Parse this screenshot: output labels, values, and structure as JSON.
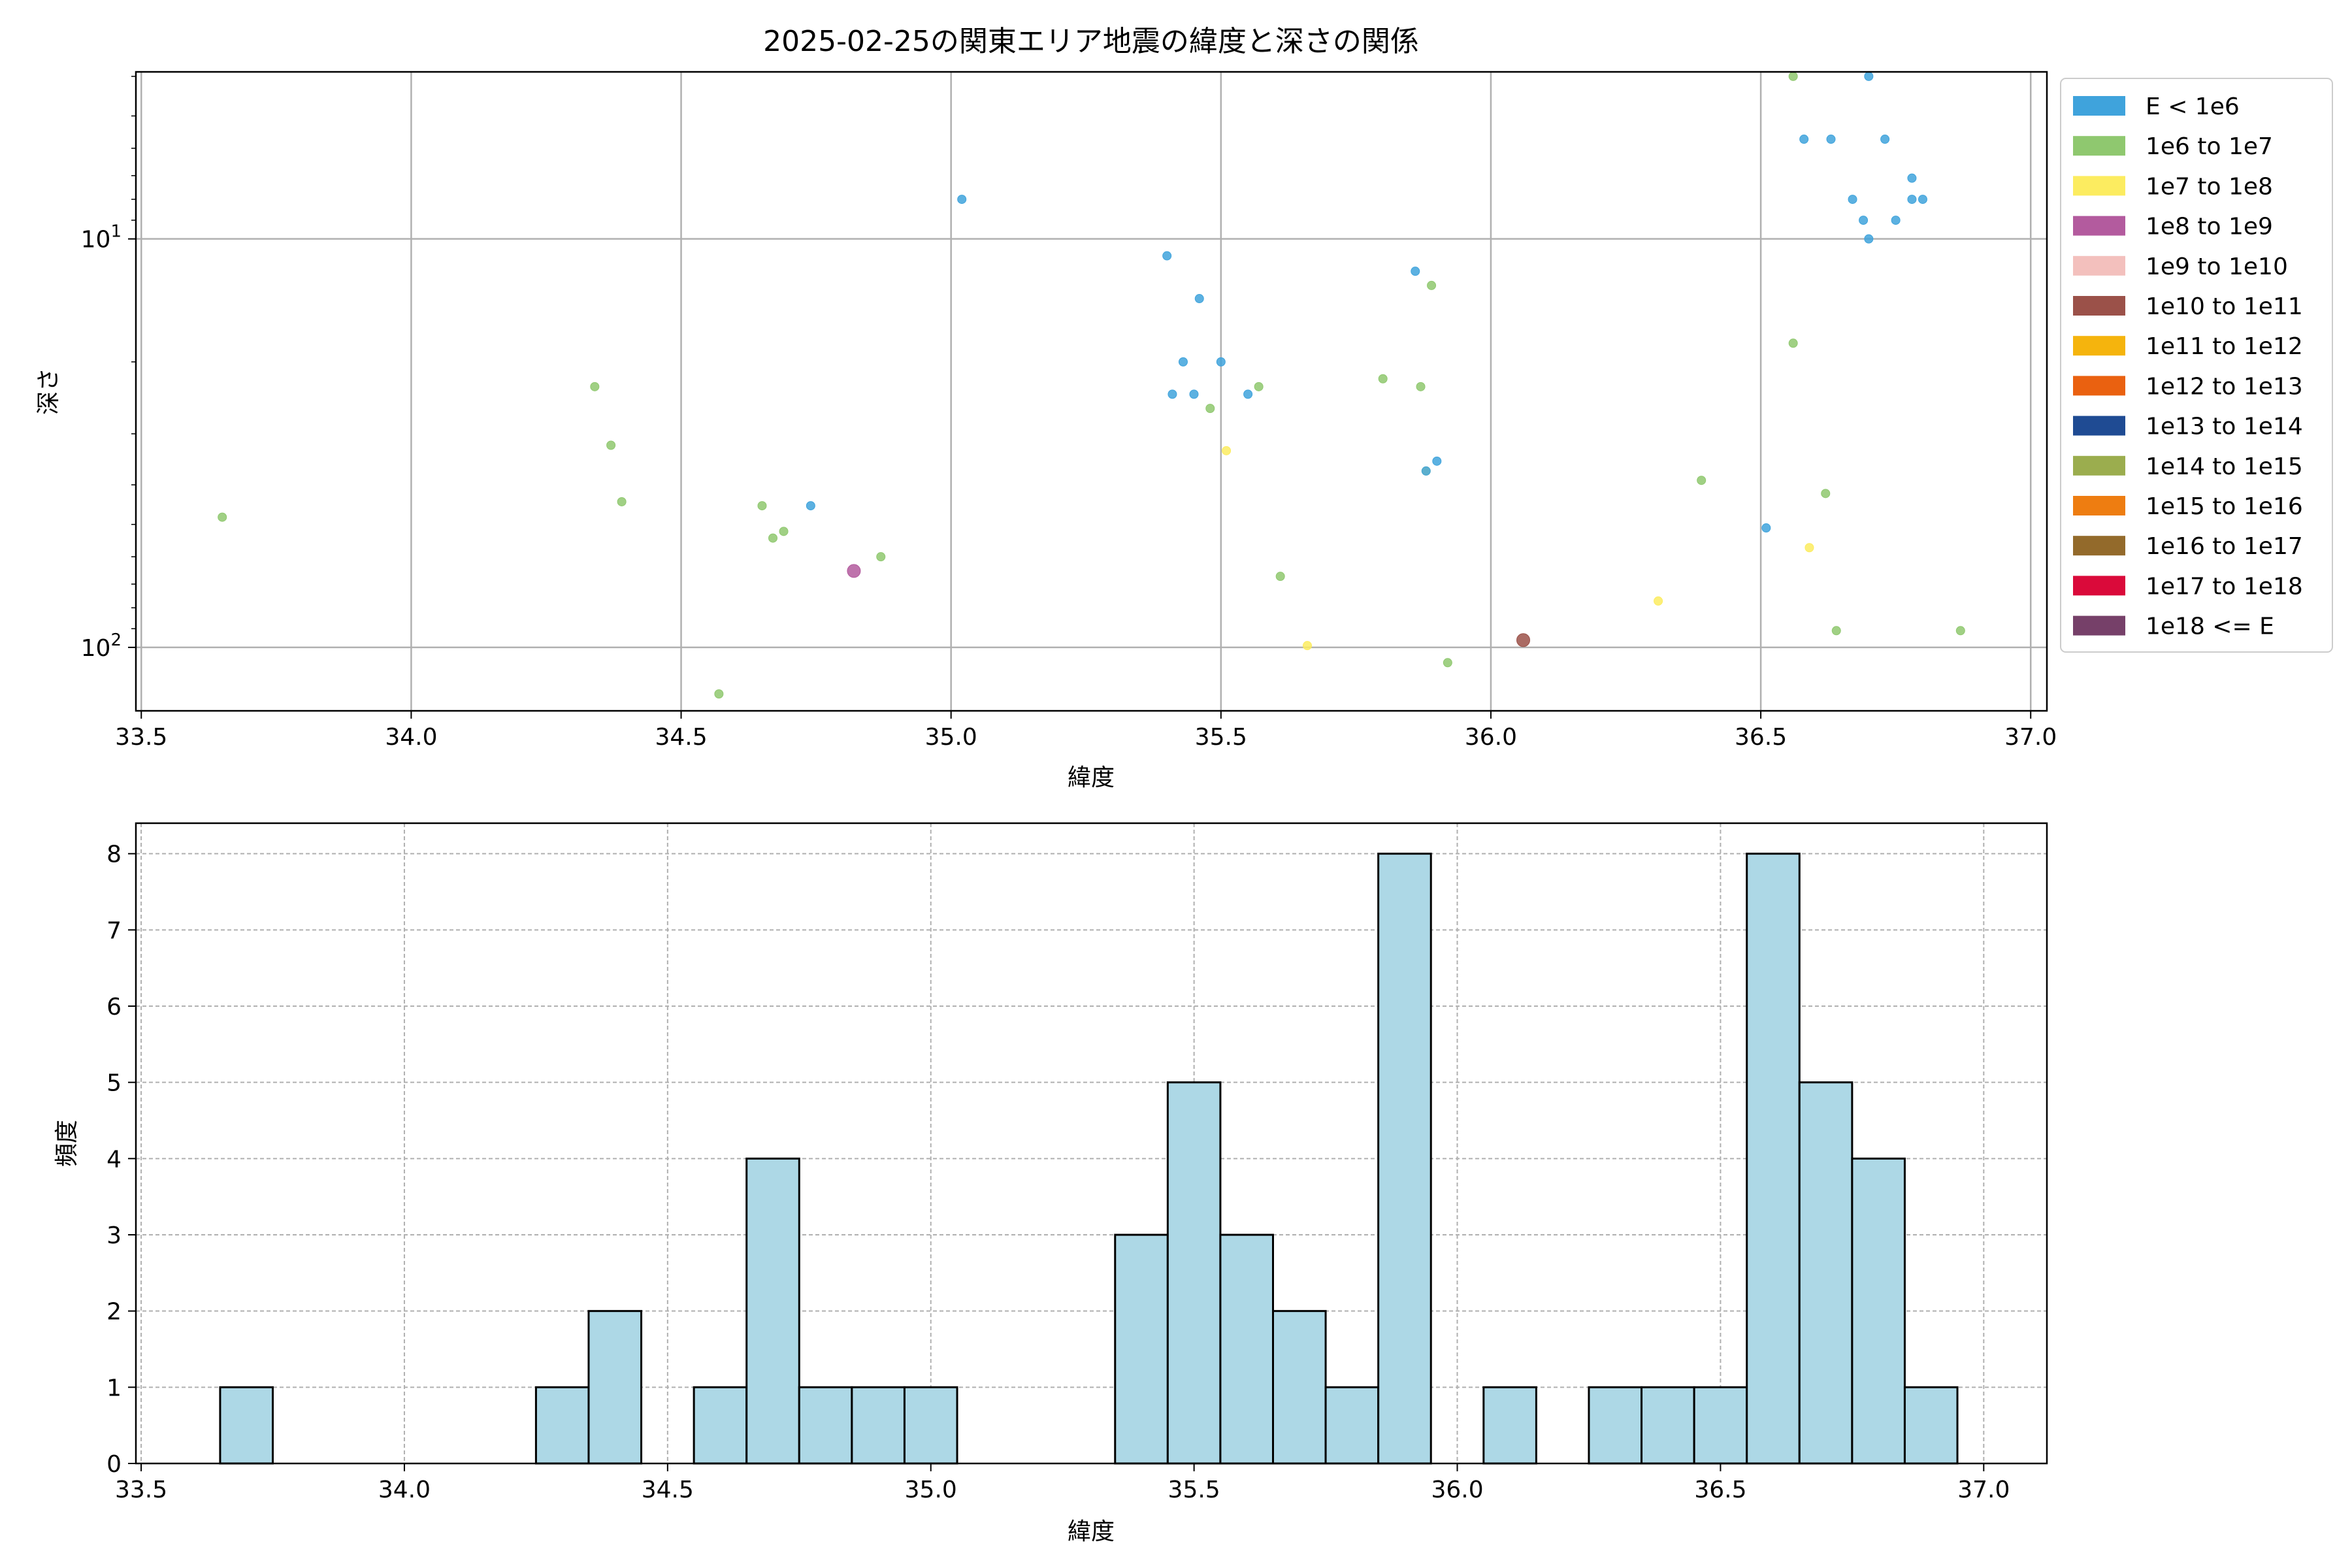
{
  "chart_data": [
    {
      "type": "scatter",
      "title": "2025-02-25の関東エリア地震の緯度と深さの関係",
      "xlabel": "緯度",
      "ylabel": "深さ",
      "xlim": [
        33.49,
        37.03
      ],
      "ylim": [
        143,
        3.9
      ],
      "yscale": "log",
      "y_inverted": true,
      "xticks": [
        33.5,
        34.0,
        34.5,
        35.0,
        35.5,
        36.0,
        36.5,
        37.0
      ],
      "xtick_labels": [
        "33.5",
        "34.0",
        "34.5",
        "35.0",
        "35.5",
        "36.0",
        "36.5",
        "37.0"
      ],
      "yticks": [
        10,
        100
      ],
      "ytick_labels": [
        "10",
        "100"
      ],
      "ytick_exponents": [
        "1",
        "2"
      ],
      "grid": true,
      "legend_placement": "outside right",
      "legend": [
        {
          "label": "E < 1e6",
          "color": "#3fa3dc"
        },
        {
          "label": "1e6 to 1e7",
          "color": "#8fc86f"
        },
        {
          "label": "1e7 to 1e8",
          "color": "#fcec60"
        },
        {
          "label": "1e8 to 1e9",
          "color": "#b35b9e"
        },
        {
          "label": "1e9 to 1e10",
          "color": "#f3c0bd"
        },
        {
          "label": "1e10 to 1e11",
          "color": "#9b5149"
        },
        {
          "label": "1e11 to 1e12",
          "color": "#f5b40d"
        },
        {
          "label": "1e12 to 1e13",
          "color": "#ea6110"
        },
        {
          "label": "1e13 to 1e14",
          "color": "#1f4b93"
        },
        {
          "label": "1e14 to 1e15",
          "color": "#9bad4e"
        },
        {
          "label": "1e15 to 1e16",
          "color": "#ee7d11"
        },
        {
          "label": "1e16 to 1e17",
          "color": "#936a2b"
        },
        {
          "label": "1e17 to 1e18",
          "color": "#da0a3a"
        },
        {
          "label": "1e18 <= E",
          "color": "#764069"
        }
      ],
      "points": [
        {
          "x": 33.65,
          "y": 48,
          "c": 1
        },
        {
          "x": 34.34,
          "y": 23,
          "c": 1
        },
        {
          "x": 34.37,
          "y": 32,
          "c": 1
        },
        {
          "x": 34.39,
          "y": 44,
          "c": 1
        },
        {
          "x": 34.57,
          "y": 130,
          "c": 1
        },
        {
          "x": 34.65,
          "y": 45,
          "c": 1
        },
        {
          "x": 34.67,
          "y": 54,
          "c": 1
        },
        {
          "x": 34.69,
          "y": 52,
          "c": 1
        },
        {
          "x": 34.74,
          "y": 45,
          "c": 0
        },
        {
          "x": 34.82,
          "y": 65,
          "c": 3,
          "big": true
        },
        {
          "x": 34.87,
          "y": 60,
          "c": 1
        },
        {
          "x": 35.02,
          "y": 8,
          "c": 0
        },
        {
          "x": 35.4,
          "y": 11,
          "c": 0
        },
        {
          "x": 35.41,
          "y": 24,
          "c": 0
        },
        {
          "x": 35.43,
          "y": 20,
          "c": 0
        },
        {
          "x": 35.45,
          "y": 24,
          "c": 0
        },
        {
          "x": 35.46,
          "y": 14,
          "c": 0
        },
        {
          "x": 35.48,
          "y": 26,
          "c": 1
        },
        {
          "x": 35.5,
          "y": 20,
          "c": 0
        },
        {
          "x": 35.51,
          "y": 33,
          "c": 2
        },
        {
          "x": 35.55,
          "y": 24,
          "c": 0
        },
        {
          "x": 35.57,
          "y": 23,
          "c": 1
        },
        {
          "x": 35.61,
          "y": 67,
          "c": 1
        },
        {
          "x": 35.66,
          "y": 99,
          "c": 2
        },
        {
          "x": 35.8,
          "y": 22,
          "c": 1
        },
        {
          "x": 35.86,
          "y": 12,
          "c": 0
        },
        {
          "x": 35.87,
          "y": 23,
          "c": 1
        },
        {
          "x": 35.88,
          "y": 37,
          "c": 2
        },
        {
          "x": 35.88,
          "y": 37,
          "c": 0
        },
        {
          "x": 35.89,
          "y": 13,
          "c": 1
        },
        {
          "x": 35.9,
          "y": 35,
          "c": 0
        },
        {
          "x": 35.92,
          "y": 109,
          "c": 1
        },
        {
          "x": 36.06,
          "y": 96,
          "c": 5,
          "big": true
        },
        {
          "x": 36.31,
          "y": 77,
          "c": 2
        },
        {
          "x": 36.39,
          "y": 39,
          "c": 1
        },
        {
          "x": 36.51,
          "y": 51,
          "c": 0
        },
        {
          "x": 36.56,
          "y": 4,
          "c": 1
        },
        {
          "x": 36.56,
          "y": 18,
          "c": 1
        },
        {
          "x": 36.58,
          "y": 5.7,
          "c": 0
        },
        {
          "x": 36.59,
          "y": 57,
          "c": 2
        },
        {
          "x": 36.62,
          "y": 42,
          "c": 1
        },
        {
          "x": 36.63,
          "y": 5.7,
          "c": 0
        },
        {
          "x": 36.64,
          "y": 91,
          "c": 1
        },
        {
          "x": 36.67,
          "y": 8,
          "c": 0
        },
        {
          "x": 36.69,
          "y": 9,
          "c": 0
        },
        {
          "x": 36.7,
          "y": 10,
          "c": 0
        },
        {
          "x": 36.7,
          "y": 4,
          "c": 0
        },
        {
          "x": 36.73,
          "y": 5.7,
          "c": 0
        },
        {
          "x": 36.75,
          "y": 9,
          "c": 0
        },
        {
          "x": 36.78,
          "y": 7.1,
          "c": 0
        },
        {
          "x": 36.78,
          "y": 8,
          "c": 0
        },
        {
          "x": 36.8,
          "y": 8,
          "c": 0
        },
        {
          "x": 36.87,
          "y": 91,
          "c": 1
        }
      ]
    },
    {
      "type": "bar",
      "subtype": "histogram",
      "xlabel": "緯度",
      "ylabel": "頻度",
      "xlim": [
        33.49,
        37.12
      ],
      "ylim": [
        0,
        8.4
      ],
      "xticks": [
        33.5,
        34.0,
        34.5,
        35.0,
        35.5,
        36.0,
        36.5,
        37.0
      ],
      "xtick_labels": [
        "33.5",
        "34.0",
        "34.5",
        "35.0",
        "35.5",
        "36.0",
        "36.5",
        "37.0"
      ],
      "yticks": [
        0,
        1,
        2,
        3,
        4,
        5,
        6,
        7,
        8
      ],
      "ytick_labels": [
        "0",
        "1",
        "2",
        "3",
        "4",
        "5",
        "6",
        "7",
        "8"
      ],
      "grid": true,
      "bar_color": "#add8e6",
      "edge_color": "#000000",
      "bin_width": 0.1,
      "bins": [
        {
          "start": 33.65,
          "count": 1
        },
        {
          "start": 34.25,
          "count": 1
        },
        {
          "start": 34.35,
          "count": 2
        },
        {
          "start": 34.55,
          "count": 1
        },
        {
          "start": 34.65,
          "count": 4
        },
        {
          "start": 34.75,
          "count": 1
        },
        {
          "start": 34.85,
          "count": 1
        },
        {
          "start": 34.95,
          "count": 1
        },
        {
          "start": 35.35,
          "count": 3
        },
        {
          "start": 35.45,
          "count": 5
        },
        {
          "start": 35.55,
          "count": 3
        },
        {
          "start": 35.65,
          "count": 2
        },
        {
          "start": 35.75,
          "count": 1
        },
        {
          "start": 35.85,
          "count": 8
        },
        {
          "start": 36.05,
          "count": 1
        },
        {
          "start": 36.25,
          "count": 1
        },
        {
          "start": 36.35,
          "count": 1
        },
        {
          "start": 36.45,
          "count": 1
        },
        {
          "start": 36.55,
          "count": 8
        },
        {
          "start": 36.65,
          "count": 5
        },
        {
          "start": 36.75,
          "count": 4
        },
        {
          "start": 36.85,
          "count": 1
        }
      ]
    }
  ]
}
